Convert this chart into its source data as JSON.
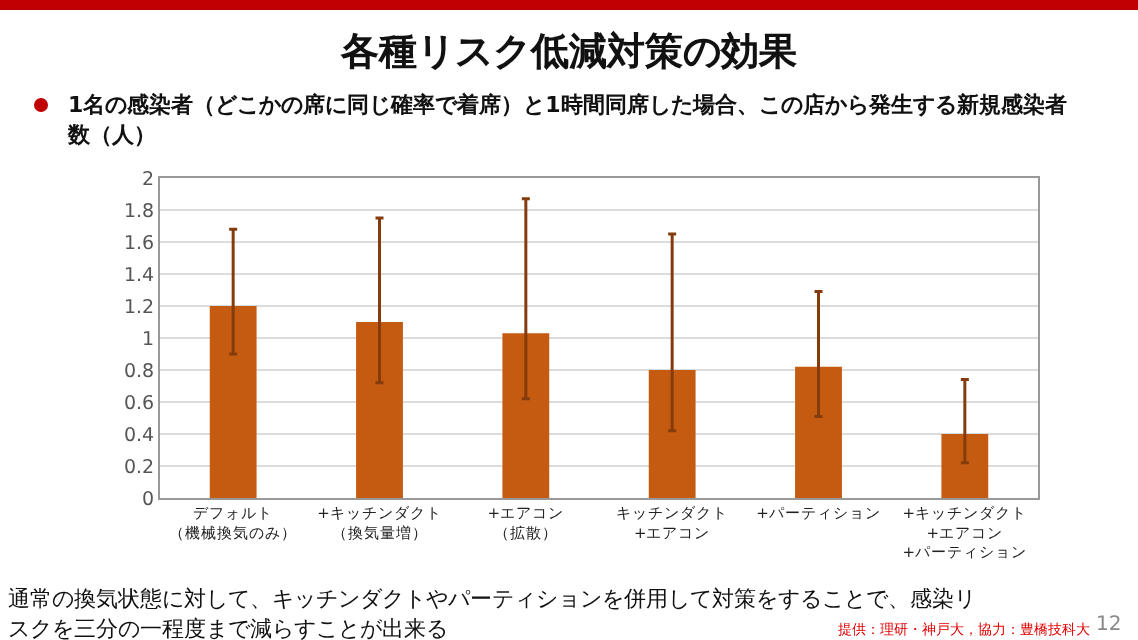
{
  "chart_data": {
    "type": "bar",
    "title": "各種リスク低減対策の効果",
    "subtitle": "1名の感染者（どこかの席に同じ確率で着席）と1時間同席した場合、この店から発生する新規感染者数（人）",
    "categories": [
      "デフォルト（機械換気のみ）",
      "+キッチンダクト（換気量増）",
      "+エアコン（拡散）",
      "キッチンダクト+エアコン",
      "+パーティション",
      "+キッチンダクト+エアコン+パーティション"
    ],
    "values": [
      1.2,
      1.1,
      1.03,
      0.8,
      0.82,
      0.4
    ],
    "errors": [
      [
        0.9,
        1.68
      ],
      [
        0.72,
        1.75
      ],
      [
        0.62,
        1.87
      ],
      [
        0.42,
        1.65
      ],
      [
        0.51,
        1.29
      ],
      [
        0.22,
        0.74
      ]
    ],
    "color": "#c55a11",
    "ylim": [
      0,
      2
    ],
    "yticks": [
      0,
      0.2,
      0.4,
      0.6,
      0.8,
      1,
      1.2,
      1.4,
      1.6,
      1.8,
      2
    ],
    "grid": "y",
    "annotations": [
      "通常の換気状態に対して、キッチンダクトやパーティションを併用して対策をすることで、感染リスクを三分の一程度まで減らすことが出来る",
      "提供：理研・神戸大，協力：豊橋技科大",
      "12"
    ]
  }
}
